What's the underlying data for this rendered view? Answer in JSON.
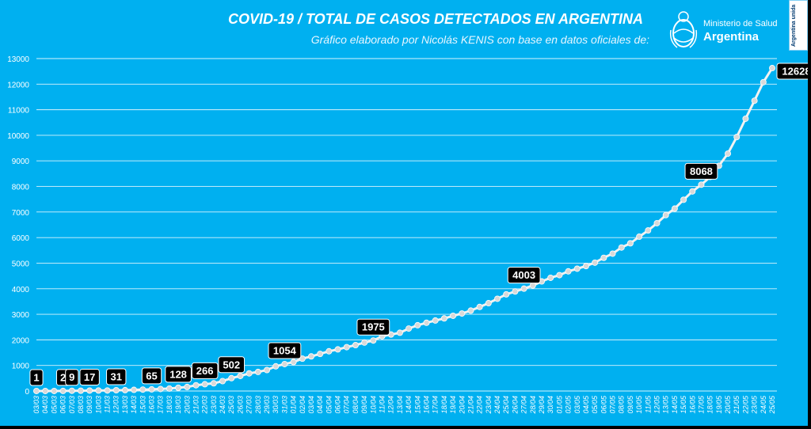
{
  "header": {
    "title": "COVID-19  /  TOTAL DE CASOS DETECTADOS EN ARGENTINA",
    "subtitle": "Gráfico elaborado por Nicolás KENIS con base en datos oficiales de:",
    "ministry": "Ministerio de Salud",
    "country": "Argentina",
    "badge": "Argentina unida",
    "logo_icon": "national-seal-icon"
  },
  "colors": {
    "background": "#00b0f0",
    "line": "#f2f2f2",
    "marker": "#d9d9d9",
    "label_bg": "#000000",
    "label_text": "#ffffff",
    "grid": "#ffffff"
  },
  "chart_data": {
    "type": "line",
    "ylim": [
      0,
      13000
    ],
    "yticks": [
      0,
      1000,
      2000,
      3000,
      4000,
      5000,
      6000,
      7000,
      8000,
      9000,
      10000,
      11000,
      12000,
      13000
    ],
    "grid": "horizontal",
    "categories": [
      "03/03",
      "04/03",
      "05/03",
      "06/03",
      "07/03",
      "08/03",
      "09/03",
      "10/03",
      "11/03",
      "12/03",
      "13/03",
      "14/03",
      "15/03",
      "16/03",
      "17/03",
      "18/03",
      "19/03",
      "20/03",
      "21/03",
      "22/03",
      "23/03",
      "24/03",
      "25/03",
      "26/03",
      "27/03",
      "28/03",
      "29/03",
      "30/03",
      "31/03",
      "01/04",
      "02/04",
      "03/04",
      "04/04",
      "05/04",
      "06/04",
      "07/04",
      "08/04",
      "09/04",
      "10/04",
      "11/04",
      "12/04",
      "13/04",
      "14/04",
      "15/04",
      "16/04",
      "17/04",
      "18/04",
      "19/04",
      "20/04",
      "21/04",
      "22/04",
      "23/04",
      "24/04",
      "25/04",
      "26/04",
      "27/04",
      "28/04",
      "29/04",
      "30/04",
      "01/05",
      "02/05",
      "03/05",
      "04/05",
      "05/05",
      "06/05",
      "07/05",
      "08/05",
      "09/05",
      "10/05",
      "11/05",
      "12/05",
      "13/05",
      "14/05",
      "15/05",
      "16/05",
      "17/05",
      "18/05",
      "19/05",
      "20/05",
      "21/05",
      "22/05",
      "23/05",
      "24/05",
      "25/05"
    ],
    "values": [
      1,
      1,
      1,
      2,
      9,
      12,
      17,
      19,
      21,
      31,
      34,
      45,
      56,
      65,
      79,
      97,
      128,
      158,
      225,
      266,
      301,
      387,
      502,
      589,
      690,
      745,
      820,
      966,
      1054,
      1133,
      1265,
      1353,
      1451,
      1554,
      1628,
      1715,
      1795,
      1894,
      1975,
      2142,
      2208,
      2277,
      2443,
      2571,
      2669,
      2758,
      2839,
      2941,
      3031,
      3144,
      3288,
      3435,
      3607,
      3780,
      3892,
      4003,
      4127,
      4285,
      4428,
      4532,
      4681,
      4783,
      4887,
      5020,
      5208,
      5371,
      5611,
      5776,
      6034,
      6278,
      6563,
      6879,
      7134,
      7479,
      7805,
      8068,
      8371,
      8809,
      9283,
      9931,
      10649,
      11353,
      12076,
      12628
    ],
    "labels": [
      {
        "category": "03/03",
        "text": "1"
      },
      {
        "category": "06/03",
        "text": "2"
      },
      {
        "category": "07/03",
        "text": "9"
      },
      {
        "category": "09/03",
        "text": "17"
      },
      {
        "category": "12/03",
        "text": "31"
      },
      {
        "category": "16/03",
        "text": "65"
      },
      {
        "category": "19/03",
        "text": "128"
      },
      {
        "category": "22/03",
        "text": "266"
      },
      {
        "category": "25/03",
        "text": "502"
      },
      {
        "category": "31/03",
        "text": "1054"
      },
      {
        "category": "10/04",
        "text": "1975"
      },
      {
        "category": "27/04",
        "text": "4003"
      },
      {
        "category": "17/05",
        "text": "8068"
      },
      {
        "category": "25/05",
        "text": "12628"
      }
    ]
  }
}
